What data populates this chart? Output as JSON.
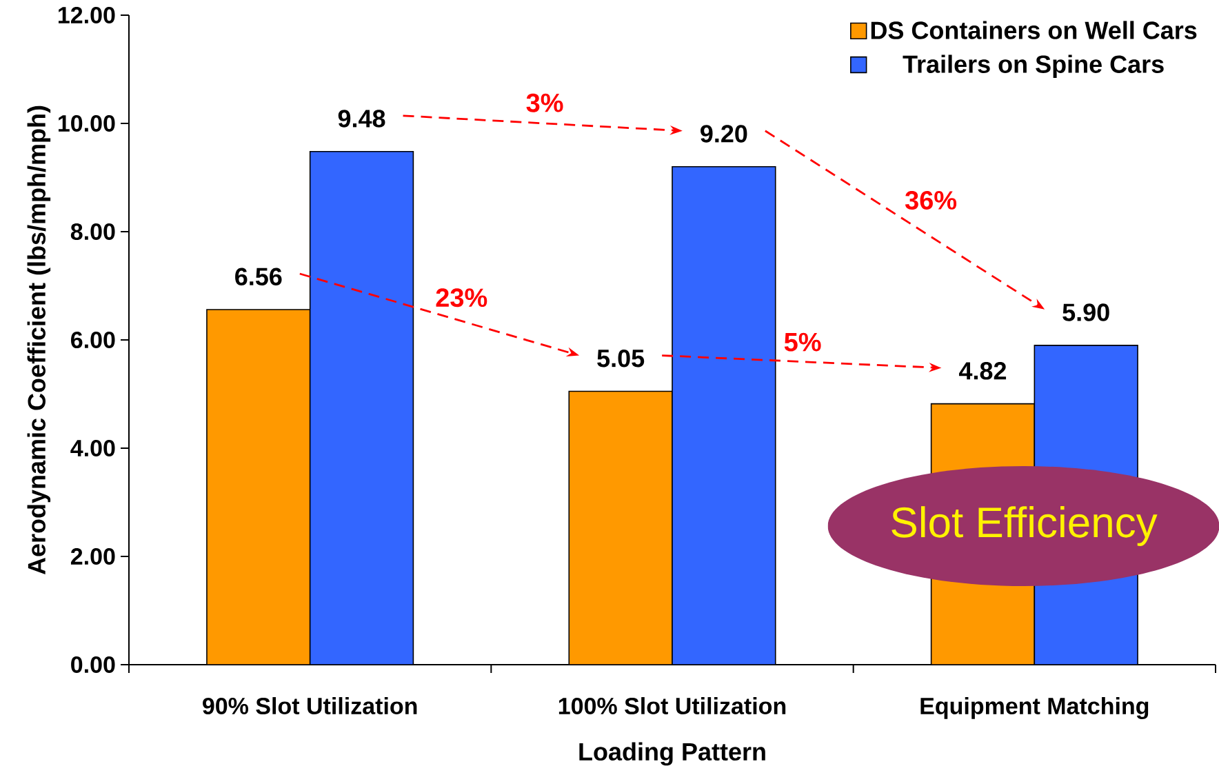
{
  "chart_data": {
    "type": "bar",
    "xlabel": "Loading Pattern",
    "ylabel": "Aerodynamic Coefficient (lbs/mph/mph)",
    "categories": [
      "90% Slot Utilization",
      "100% Slot Utilization",
      "Equipment Matching"
    ],
    "series": [
      {
        "name": "DS Containers on Well Cars",
        "color": "#ff9900",
        "values": [
          6.56,
          5.05,
          4.82
        ],
        "value_labels": [
          "6.56",
          "5.05",
          "4.82"
        ]
      },
      {
        "name": "Trailers on Spine Cars",
        "color": "#3366ff",
        "values": [
          9.48,
          9.2,
          5.9
        ],
        "value_labels": [
          "9.48",
          "9.20",
          "5.90"
        ]
      }
    ],
    "ylim": [
      0,
      12
    ],
    "yticks": [
      {
        "value": 0,
        "label": "0.00"
      },
      {
        "value": 2,
        "label": "2.00"
      },
      {
        "value": 4,
        "label": "4.00"
      },
      {
        "value": 6,
        "label": "6.00"
      },
      {
        "value": 8,
        "label": "8.00"
      },
      {
        "value": 10,
        "label": "10.00"
      },
      {
        "value": 12,
        "label": "12.00"
      }
    ],
    "legend": "top right",
    "grid": false,
    "annotations": [
      "3%",
      "23%",
      "36%",
      "5%",
      "Slot Efficiency"
    ]
  }
}
